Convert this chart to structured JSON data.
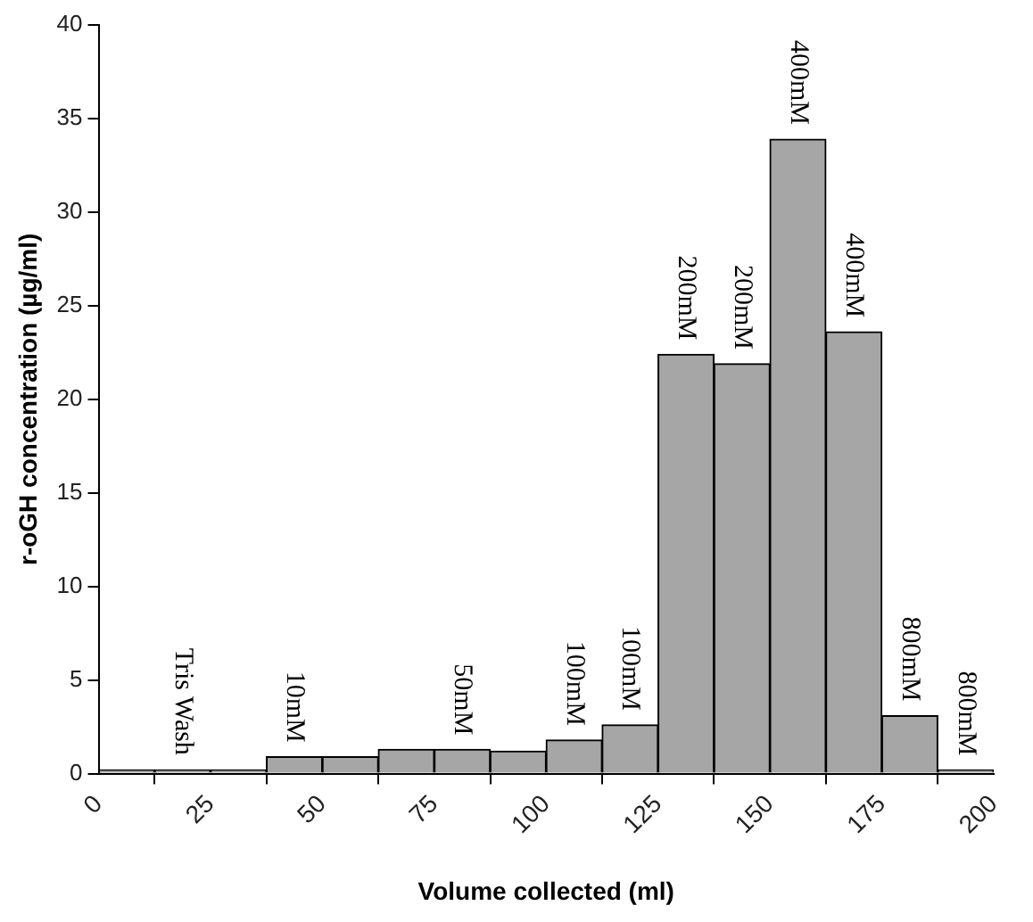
{
  "chart_data": {
    "type": "histogram",
    "xlabel": "Volume collected (ml)",
    "ylabel": "r-oGH concentration (µg/ml)",
    "bins": [
      0,
      12.5,
      25,
      37.5,
      50,
      62.5,
      75,
      87.5,
      100,
      112.5,
      125,
      137.5,
      150,
      162.5,
      175,
      187.5,
      200
    ],
    "values": [
      0.2,
      0.2,
      0.2,
      0.9,
      0.9,
      1.3,
      1.3,
      1.2,
      1.8,
      2.6,
      22.4,
      21.9,
      33.9,
      23.6,
      3.1,
      0.2
    ],
    "color": "#a6a6a6",
    "xlim": [
      0,
      200
    ],
    "xticks": [
      0,
      25,
      50,
      75,
      100,
      125,
      150,
      175,
      200
    ],
    "ylim": [
      0,
      40
    ],
    "yticks": [
      0,
      5,
      10,
      15,
      20,
      25,
      30,
      35,
      40
    ],
    "grid": false,
    "legend": false,
    "annotations": [
      {
        "text": "Tris Wash",
        "x": 18.75,
        "y": 0.2
      },
      {
        "text": "10mM",
        "x": 43.75,
        "y": 0.9
      },
      {
        "text": "50mM",
        "x": 81.25,
        "y": 1.3
      },
      {
        "text": "100mM",
        "x": 106.25,
        "y": 1.8
      },
      {
        "text": "100mM",
        "x": 118.75,
        "y": 2.6
      },
      {
        "text": "200mM",
        "x": 131.25,
        "y": 22.4
      },
      {
        "text": "200mM",
        "x": 143.75,
        "y": 21.9
      },
      {
        "text": "400mM",
        "x": 156.25,
        "y": 33.9
      },
      {
        "text": "400mM",
        "x": 168.75,
        "y": 23.6
      },
      {
        "text": "800mM",
        "x": 181.25,
        "y": 3.1
      },
      {
        "text": "800mM",
        "x": 193.75,
        "y": 0.2
      }
    ]
  }
}
